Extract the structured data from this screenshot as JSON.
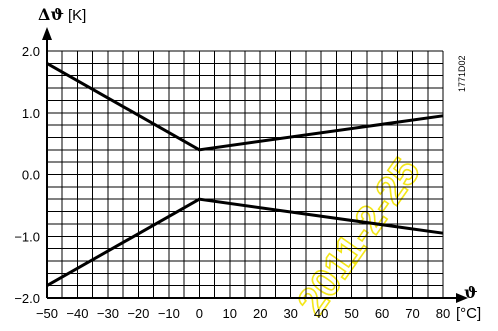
{
  "chart_data": {
    "type": "line",
    "y_axis": {
      "symbol": "Δϑ",
      "unit": "[K]",
      "range": [
        -2.0,
        2.0
      ],
      "ticks": [
        2.0,
        1.0,
        0.0,
        -1.0,
        -2.0
      ],
      "tick_labels": [
        "2.0",
        "1.0",
        "0.0",
        "−1.0",
        "−2.0"
      ]
    },
    "x_axis": {
      "symbol": "ϑ",
      "unit": "[°C]",
      "range": [
        -50,
        80
      ],
      "ticks": [
        -50,
        -40,
        -30,
        -20,
        -10,
        0,
        10,
        20,
        30,
        40,
        50,
        60,
        70,
        80
      ],
      "tick_labels": [
        "−50",
        "−40",
        "−30",
        "−20",
        "−10",
        "0",
        "10",
        "20",
        "30",
        "40",
        "50",
        "60",
        "70",
        "80"
      ]
    },
    "grid": true,
    "series": [
      {
        "x": [
          -50,
          0,
          80
        ],
        "y": [
          1.8,
          0.4,
          0.95
        ]
      },
      {
        "x": [
          -50,
          0,
          80
        ],
        "y": [
          -1.8,
          -0.4,
          -0.95
        ]
      }
    ],
    "annotations": {
      "code": "1771D02"
    }
  },
  "watermark": {
    "text": "2011-2-25"
  }
}
